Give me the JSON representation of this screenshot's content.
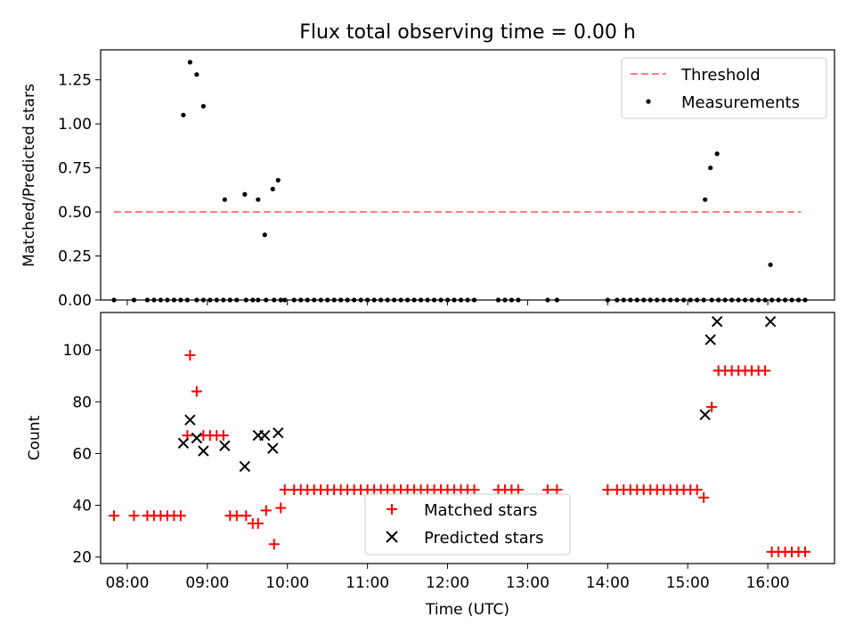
{
  "figure": {
    "title": "Flux total observing time = 0.00 h"
  },
  "chart_data": [
    {
      "type": "scatter",
      "ylabel": "Matched/Predicted stars",
      "xlabel": "",
      "xlim": [
        "07:40",
        "16:50"
      ],
      "ylim": [
        0,
        1.42
      ],
      "yticks": [
        "0.00",
        "0.25",
        "0.50",
        "0.75",
        "1.00",
        "1.25"
      ],
      "legend": {
        "position": "top-right",
        "entries": [
          "Threshold",
          "Measurements"
        ]
      },
      "threshold": {
        "name": "Threshold",
        "value": 0.5,
        "x_start": "07:50",
        "x_end": "16:25",
        "color": "#ff7f7f"
      },
      "measurements": {
        "name": "Measurements",
        "x": [
          "07:50",
          "08:05",
          "08:15",
          "08:20",
          "08:25",
          "08:30",
          "08:35",
          "08:40",
          "08:45",
          "08:52",
          "08:57",
          "09:02",
          "09:07",
          "09:12",
          "09:17",
          "09:22",
          "09:29",
          "09:34",
          "09:38",
          "09:44",
          "09:50",
          "09:55",
          "09:58",
          "10:05",
          "10:10",
          "10:15",
          "10:20",
          "10:25",
          "10:30",
          "10:35",
          "10:40",
          "10:45",
          "10:50",
          "10:55",
          "11:00",
          "11:05",
          "11:10",
          "11:15",
          "11:20",
          "11:25",
          "11:30",
          "11:35",
          "11:40",
          "11:45",
          "11:50",
          "11:55",
          "12:00",
          "12:05",
          "12:10",
          "12:15",
          "12:20",
          "12:38",
          "12:43",
          "12:48",
          "12:53",
          "13:15",
          "13:22",
          "14:00",
          "14:07",
          "14:12",
          "14:17",
          "14:22",
          "14:27",
          "14:32",
          "14:37",
          "14:42",
          "14:47",
          "14:52",
          "14:57",
          "15:02",
          "15:07",
          "15:12",
          "15:18",
          "15:23",
          "15:28",
          "15:33",
          "15:38",
          "15:43",
          "15:48",
          "15:53",
          "15:58",
          "16:03",
          "16:08",
          "16:13",
          "16:18",
          "16:23",
          "16:28",
          "08:42",
          "08:47",
          "08:52",
          "08:57",
          "09:13",
          "09:28",
          "09:38",
          "09:43",
          "09:49",
          "09:53",
          "15:13",
          "15:17",
          "15:22",
          "16:02"
        ],
        "y": [
          0,
          0,
          0,
          0,
          0,
          0,
          0,
          0,
          0,
          0,
          0,
          0,
          0,
          0,
          0,
          0,
          0,
          0,
          0,
          0,
          0,
          0,
          0,
          0,
          0,
          0,
          0,
          0,
          0,
          0,
          0,
          0,
          0,
          0,
          0,
          0,
          0,
          0,
          0,
          0,
          0,
          0,
          0,
          0,
          0,
          0,
          0,
          0,
          0,
          0,
          0,
          0,
          0,
          0,
          0,
          0,
          0,
          0,
          0,
          0,
          0,
          0,
          0,
          0,
          0,
          0,
          0,
          0,
          0,
          0,
          0,
          0,
          0,
          0,
          0,
          0,
          0,
          0,
          0,
          0,
          0,
          0,
          0,
          0,
          0,
          0,
          0,
          1.05,
          1.35,
          1.28,
          1.1,
          0.57,
          0.6,
          0.57,
          0.37,
          0.63,
          0.68,
          0.57,
          0.75,
          0.83,
          0.2
        ],
        "color": "#000000"
      }
    },
    {
      "type": "scatter",
      "ylabel": "Count",
      "xlabel": "Time (UTC)",
      "xlim": [
        "07:40",
        "16:50"
      ],
      "ylim": [
        17.5,
        114.5
      ],
      "yticks": [
        "20",
        "40",
        "60",
        "80",
        "100"
      ],
      "xticks": [
        "08:00",
        "09:00",
        "10:00",
        "11:00",
        "12:00",
        "13:00",
        "14:00",
        "15:00",
        "16:00"
      ],
      "legend": {
        "position": "lower-center",
        "entries": [
          "Matched stars",
          "Predicted stars"
        ]
      },
      "matched": {
        "name": "Matched stars",
        "x": [
          "07:50",
          "08:05",
          "08:15",
          "08:20",
          "08:25",
          "08:30",
          "08:35",
          "08:40",
          "08:45",
          "08:47",
          "08:52",
          "08:57",
          "09:02",
          "09:07",
          "09:12",
          "09:17",
          "09:22",
          "09:29",
          "09:34",
          "09:38",
          "09:44",
          "09:50",
          "09:55",
          "09:58",
          "10:05",
          "10:10",
          "10:15",
          "10:20",
          "10:25",
          "10:30",
          "10:35",
          "10:40",
          "10:45",
          "10:50",
          "10:55",
          "11:00",
          "11:05",
          "11:10",
          "11:15",
          "11:20",
          "11:25",
          "11:30",
          "11:35",
          "11:40",
          "11:45",
          "11:50",
          "11:55",
          "12:00",
          "12:05",
          "12:10",
          "12:15",
          "12:20",
          "12:38",
          "12:43",
          "12:48",
          "12:53",
          "13:15",
          "13:22",
          "14:00",
          "14:07",
          "14:12",
          "14:17",
          "14:22",
          "14:27",
          "14:32",
          "14:37",
          "14:42",
          "14:47",
          "14:52",
          "14:57",
          "15:02",
          "15:07",
          "15:12",
          "15:18",
          "15:23",
          "15:28",
          "15:33",
          "15:38",
          "15:43",
          "15:48",
          "15:53",
          "15:58",
          "16:03",
          "16:08",
          "16:13",
          "16:18",
          "16:23",
          "16:28"
        ],
        "y": [
          36,
          36,
          36,
          36,
          36,
          36,
          36,
          36,
          67,
          98,
          84,
          67,
          67,
          67,
          67,
          36,
          36,
          36,
          33,
          33,
          38,
          25,
          39,
          46,
          46,
          46,
          46,
          46,
          46,
          46,
          46,
          46,
          46,
          46,
          46,
          46,
          46,
          46,
          46,
          46,
          46,
          46,
          46,
          46,
          46,
          46,
          46,
          46,
          46,
          46,
          46,
          46,
          46,
          46,
          46,
          46,
          46,
          46,
          46,
          46,
          46,
          46,
          46,
          46,
          46,
          46,
          46,
          46,
          46,
          46,
          46,
          46,
          43,
          78,
          92,
          92,
          92,
          92,
          92,
          92,
          92,
          92,
          22,
          22,
          22,
          22,
          22,
          22
        ],
        "color": "#ff0000"
      },
      "predicted": {
        "name": "Predicted stars",
        "x": [
          "08:42",
          "08:47",
          "08:52",
          "08:57",
          "09:13",
          "09:28",
          "09:38",
          "09:43",
          "09:49",
          "09:53",
          "15:13",
          "15:17",
          "15:22",
          "16:02"
        ],
        "y": [
          64,
          73,
          66,
          61,
          63,
          55,
          67,
          67,
          62,
          68,
          75,
          104,
          111,
          111
        ],
        "color": "#000000"
      }
    }
  ]
}
